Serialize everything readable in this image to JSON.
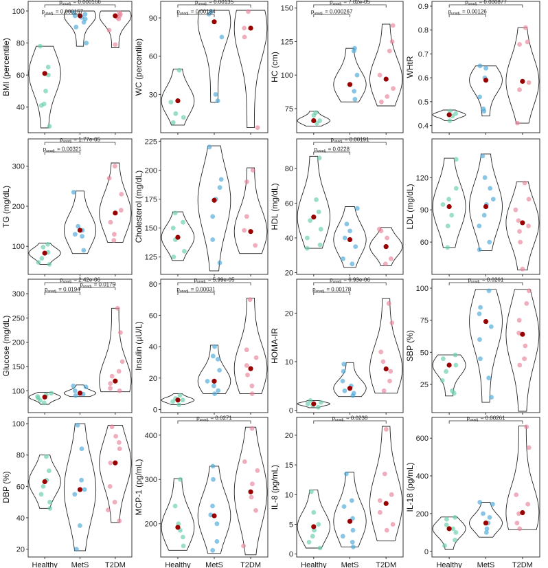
{
  "chart_data": {
    "type": "violin",
    "categories": [
      "Healthy",
      "MetS",
      "T2DM"
    ],
    "series_colors": {
      "Healthy": "#66cdaa",
      "MetS": "#4aa7d8",
      "T2DM": "#e8839a"
    },
    "median_color": "#990000",
    "p_prefix": "p",
    "p_sub": "unadj.",
    "panels": [
      {
        "ylabel": "BMI (percentile)",
        "ylim": [
          24,
          106
        ],
        "yticks": [
          40,
          60,
          80,
          100
        ],
        "medians": [
          61,
          97,
          97
        ],
        "points": [
          [
            78,
            65,
            50,
            42,
            41,
            28,
            60
          ],
          [
            95,
            98,
            99,
            96,
            80,
            90,
            93,
            97
          ],
          [
            99,
            98,
            96,
            88,
            79,
            97,
            95
          ]
        ],
        "range": [
          [
            27,
            78
          ],
          [
            78,
            100
          ],
          [
            77,
            100
          ]
        ],
        "brackets": [
          {
            "from": 0,
            "to": 2,
            "p": "0.000166"
          },
          {
            "from": 0,
            "to": 1,
            "p": "0.000157"
          }
        ]
      },
      {
        "ylabel": "WC (percentile)",
        "ylim": [
          0,
          103
        ],
        "yticks": [
          30,
          60,
          90
        ],
        "medians": [
          25,
          87,
          82
        ],
        "points": [
          [
            49,
            24,
            15,
            12,
            8
          ],
          [
            95,
            93,
            75,
            30,
            25
          ],
          [
            95,
            82,
            75,
            4
          ]
        ],
        "range": [
          [
            6,
            50
          ],
          [
            24,
            96
          ],
          [
            4,
            96
          ]
        ],
        "brackets": [
          {
            "from": 0,
            "to": 2,
            "p": "0.00135"
          },
          {
            "from": 0,
            "to": 1,
            "p": "0.00184"
          }
        ]
      },
      {
        "ylabel": "HC (cm)",
        "ylim": [
          57,
          155
        ],
        "yticks": [
          75,
          100,
          125,
          150
        ],
        "medians": [
          66,
          93,
          97
        ],
        "points": [
          [
            72,
            70,
            66,
            64
          ],
          [
            120,
            118,
            100,
            88,
            82
          ],
          [
            137,
            125,
            118,
            100,
            90,
            84,
            80
          ]
        ],
        "range": [
          [
            62,
            73
          ],
          [
            80,
            120
          ],
          [
            77,
            138
          ]
        ],
        "brackets": [
          {
            "from": 0,
            "to": 2,
            "p": "7.02e-05"
          },
          {
            "from": 0,
            "to": 1,
            "p": "0.000267"
          }
        ]
      },
      {
        "ylabel": "WHtR",
        "ylim": [
          0.37,
          0.92
        ],
        "yticks": [
          0.4,
          0.5,
          0.6,
          0.7,
          0.8,
          0.9
        ],
        "medians": [
          0.445,
          0.59,
          0.585
        ],
        "points": [
          [
            0.46,
            0.45,
            0.44,
            0.42
          ],
          [
            0.65,
            0.64,
            0.6,
            0.52,
            0.47,
            0.46
          ],
          [
            0.81,
            0.75,
            0.74,
            0.58,
            0.55,
            0.41
          ]
        ],
        "range": [
          [
            0.42,
            0.465
          ],
          [
            0.44,
            0.65
          ],
          [
            0.41,
            0.81
          ]
        ],
        "brackets": [
          {
            "from": 0,
            "to": 2,
            "p": "0.000877"
          },
          {
            "from": 0,
            "to": 1,
            "p": "0.00126"
          }
        ]
      },
      {
        "ylabel": "TG (mg/dL)",
        "ylim": [
          30,
          368
        ],
        "yticks": [
          100,
          200,
          300
        ],
        "medians": [
          83,
          140,
          183
        ],
        "points": [
          [
            105,
            98,
            85,
            70,
            60,
            55
          ],
          [
            235,
            150,
            140,
            130,
            125,
            90
          ],
          [
            300,
            270,
            230,
            190,
            160,
            130,
            115
          ]
        ],
        "range": [
          [
            55,
            108
          ],
          [
            82,
            238
          ],
          [
            110,
            308
          ]
        ],
        "brackets": [
          {
            "from": 0,
            "to": 2,
            "p": "1.77e-05"
          },
          {
            "from": 0,
            "to": 1,
            "p": "0.00321"
          }
        ]
      },
      {
        "ylabel": "Cholesterol (mg/dL)",
        "ylim": [
          110,
          227
        ],
        "yticks": [
          125,
          150,
          175,
          200,
          225
        ],
        "medians": [
          142,
          174,
          147
        ],
        "points": [
          [
            163,
            155,
            150,
            140,
            130,
            125
          ],
          [
            220,
            192,
            185,
            175,
            160,
            140,
            120
          ],
          [
            200,
            190,
            160,
            148,
            135
          ]
        ],
        "range": [
          [
            122,
            164
          ],
          [
            113,
            221
          ],
          [
            128,
            202
          ]
        ],
        "brackets": []
      },
      {
        "ylabel": "HDL (mg/dL)",
        "ylim": [
          19,
          97
        ],
        "yticks": [
          20,
          40,
          60,
          80
        ],
        "medians": [
          52,
          39,
          35
        ],
        "points": [
          [
            86,
            62,
            55,
            50,
            45,
            40,
            36,
            34
          ],
          [
            57,
            48,
            44,
            40,
            35,
            28,
            25
          ],
          [
            45,
            44,
            40,
            35,
            28,
            25
          ]
        ],
        "range": [
          [
            34,
            87
          ],
          [
            23,
            58
          ],
          [
            24,
            46
          ]
        ],
        "brackets": [
          {
            "from": 0,
            "to": 2,
            "p": "0.00191"
          },
          {
            "from": 0,
            "to": 1,
            "p": "0.0228"
          }
        ]
      },
      {
        "ylabel": "LDL (mg/dL)",
        "ylim": [
          30,
          156
        ],
        "yticks": [
          60,
          90,
          120
        ],
        "medians": [
          93,
          93,
          78
        ],
        "points": [
          [
            137,
            110,
            100,
            95,
            85,
            75,
            55
          ],
          [
            140,
            120,
            110,
            100,
            95,
            85,
            75,
            60,
            53
          ],
          [
            115,
            100,
            90,
            80,
            75,
            70,
            60,
            35
          ]
        ],
        "range": [
          [
            55,
            138
          ],
          [
            52,
            142
          ],
          [
            34,
            116
          ]
        ],
        "brackets": []
      },
      {
        "ylabel": "Glucose (mg/dL)",
        "ylim": [
          55,
          330
        ],
        "yticks": [
          100,
          150,
          200,
          250,
          300
        ],
        "medians": [
          87,
          95,
          120
        ],
        "points": [
          [
            95,
            92,
            88,
            85,
            80,
            75
          ],
          [
            110,
            108,
            100,
            96,
            93,
            90
          ],
          [
            270,
            220,
            160,
            140,
            130,
            115,
            105,
            100
          ]
        ],
        "range": [
          [
            72,
            97
          ],
          [
            88,
            112
          ],
          [
            98,
            270
          ]
        ],
        "brackets": [
          {
            "from": 0,
            "to": 2,
            "p": "2.42e-06"
          },
          {
            "from": 0,
            "to": 1,
            "p": "0.0194"
          },
          {
            "from": 1,
            "to": 2,
            "p": "0.0175"
          }
        ]
      },
      {
        "ylabel": "Insulin (µU/L)",
        "ylim": [
          -2,
          83
        ],
        "yticks": [
          0,
          20,
          40,
          60,
          80
        ],
        "medians": [
          6,
          18,
          26
        ],
        "points": [
          [
            9,
            7,
            6,
            5,
            3
          ],
          [
            40,
            34,
            32,
            25,
            18,
            15,
            12,
            10
          ],
          [
            70,
            38,
            33,
            28,
            22,
            15,
            10
          ]
        ],
        "range": [
          [
            3,
            10
          ],
          [
            10,
            41
          ],
          [
            10,
            71
          ]
        ],
        "brackets": [
          {
            "from": 0,
            "to": 2,
            "p": "5.99e-05"
          },
          {
            "from": 0,
            "to": 1,
            "p": "0.00031"
          }
        ]
      },
      {
        "ylabel": "HOMA-IR",
        "ylim": [
          -0.5,
          27
        ],
        "yticks": [
          0,
          10,
          20
        ],
        "medians": [
          1.3,
          4.5,
          8.5
        ],
        "points": [
          [
            2,
            1.6,
            1.3,
            1,
            0.6
          ],
          [
            9.5,
            8,
            6,
            5,
            4,
            3.5,
            3
          ],
          [
            22,
            18,
            12,
            10,
            8,
            6,
            4
          ]
        ],
        "range": [
          [
            0.5,
            2
          ],
          [
            2.8,
            9.8
          ],
          [
            3.5,
            23
          ]
        ],
        "brackets": [
          {
            "from": 0,
            "to": 2,
            "p": "6.93e-06"
          },
          {
            "from": 0,
            "to": 1,
            "p": "0.00178"
          }
        ]
      },
      {
        "ylabel": "SBP (%)",
        "ylim": [
          3,
          107
        ],
        "yticks": [
          25,
          50,
          75,
          100
        ],
        "medians": [
          40,
          74,
          64
        ],
        "points": [
          [
            48,
            45,
            40,
            35,
            28,
            20,
            18
          ],
          [
            98,
            85,
            80,
            70,
            60,
            45,
            30,
            15
          ],
          [
            98,
            88,
            75,
            65,
            55,
            45,
            40
          ]
        ],
        "range": [
          [
            16,
            48
          ],
          [
            11,
            99
          ],
          [
            4,
            99
          ]
        ],
        "brackets": [
          {
            "from": 0,
            "to": 2,
            "p": "0.0261"
          }
        ]
      },
      {
        "ylabel": "DBP (%)",
        "ylim": [
          15,
          104
        ],
        "yticks": [
          20,
          40,
          60,
          80,
          100
        ],
        "medians": [
          63,
          58,
          75
        ],
        "points": [
          [
            79,
            70,
            64,
            60,
            55,
            50,
            46
          ],
          [
            99,
            84,
            64,
            58,
            55,
            35,
            20
          ],
          [
            98,
            92,
            88,
            84,
            75,
            60,
            50,
            45,
            38
          ]
        ],
        "range": [
          [
            46,
            80
          ],
          [
            19,
            100
          ],
          [
            37,
            99
          ]
        ],
        "brackets": []
      },
      {
        "ylabel": "MCP-1 (pg/mL)",
        "ylim": [
          125,
          440
        ],
        "yticks": [
          200,
          300,
          400
        ],
        "medians": [
          192,
          218,
          272
        ],
        "points": [
          [
            300,
            240,
            200,
            185,
            170,
            150
          ],
          [
            330,
            300,
            240,
            220,
            200,
            160,
            140
          ],
          [
            415,
            340,
            320,
            290,
            260,
            230,
            150
          ]
        ],
        "range": [
          [
            140,
            302
          ],
          [
            133,
            330
          ],
          [
            130,
            418
          ]
        ],
        "brackets": [
          {
            "from": 0,
            "to": 2,
            "p": "0.0271"
          }
        ]
      },
      {
        "ylabel": "IL-8 (pg/mL)",
        "ylim": [
          -0.5,
          23
        ],
        "yticks": [
          0,
          5,
          10,
          15,
          20
        ],
        "medians": [
          4.6,
          5.5,
          8.5
        ],
        "points": [
          [
            10.5,
            7,
            5,
            4,
            3,
            2,
            1
          ],
          [
            13.5,
            9,
            8,
            6,
            4,
            3,
            2,
            1.2
          ],
          [
            21,
            13.5,
            10,
            9,
            7,
            5,
            4
          ]
        ],
        "range": [
          [
            1,
            10.8
          ],
          [
            1.2,
            13.8
          ],
          [
            2.2,
            21.5
          ]
        ],
        "brackets": [
          {
            "from": 0,
            "to": 2,
            "p": "0.0238"
          }
        ]
      },
      {
        "ylabel": "IL-18 (pg/mL)",
        "ylim": [
          -30,
          710
        ],
        "yticks": [
          0,
          200,
          400,
          600
        ],
        "medians": [
          120,
          150,
          205
        ],
        "points": [
          [
            180,
            170,
            140,
            120,
            100,
            60,
            30
          ],
          [
            260,
            250,
            200,
            180,
            150,
            120,
            100
          ],
          [
            660,
            550,
            300,
            250,
            200,
            150,
            120
          ]
        ],
        "range": [
          [
            10,
            182
          ],
          [
            75,
            260
          ],
          [
            115,
            665
          ]
        ],
        "brackets": [
          {
            "from": 0,
            "to": 2,
            "p": "0.00261"
          }
        ]
      }
    ]
  }
}
